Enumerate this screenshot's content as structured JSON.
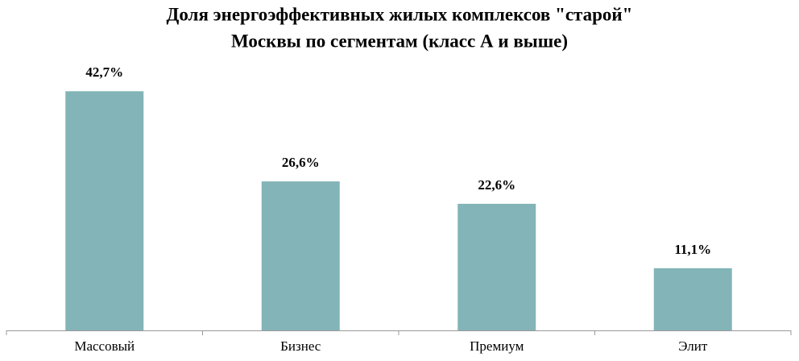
{
  "chart_data": {
    "type": "bar",
    "title": [
      "Доля энергоэффективных жилых комплексов \"старой\"",
      "Москвы по сегментам (класс А и выше)"
    ],
    "categories": [
      "Массовый",
      "Бизнес",
      "Премиум",
      "Элит"
    ],
    "values": [
      42.7,
      26.6,
      22.6,
      11.1
    ],
    "value_labels": [
      "42,7%",
      "26,6%",
      "22,6%",
      "11,1%"
    ],
    "color": "#83b4b7"
  }
}
